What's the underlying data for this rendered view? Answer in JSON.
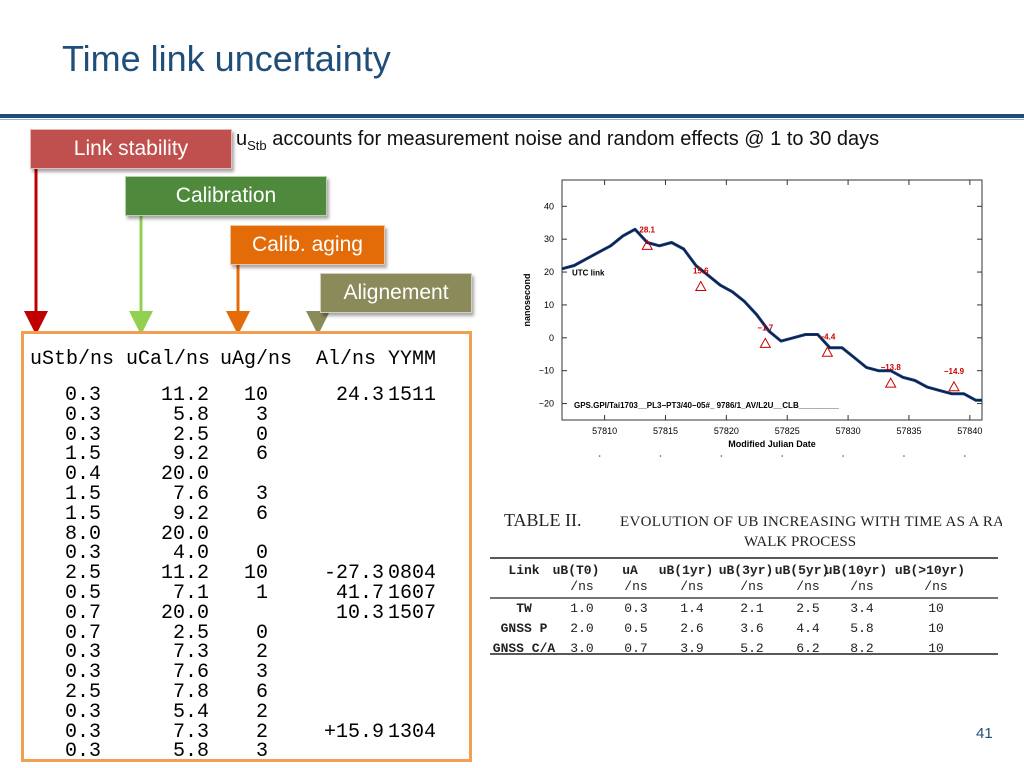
{
  "slide": {
    "title": "Time link uncertainty",
    "page_number": "41"
  },
  "tags": {
    "link_stability": "Link stability",
    "calibration": "Calibration",
    "calib_aging": "Calib. aging",
    "alignement": "Alignement"
  },
  "description": {
    "u": "u",
    "sub": "Stb",
    "rest": " accounts for measurement noise and random effects @ 1 to 30  days"
  },
  "colors": {
    "title": "#1f4e79",
    "link_stability": "#c0504d",
    "calibration": "#4f8a3c",
    "calib_aging": "#e36c09",
    "alignement": "#8a8a5a",
    "box_border": "#f0a050"
  },
  "data_table": {
    "headers": [
      "uStb/ns",
      "uCal/ns",
      "uAg/ns",
      "Al/ns",
      "YYMM"
    ],
    "rows": [
      [
        "0.3",
        "11.2",
        "10",
        "24.3",
        "1511"
      ],
      [
        "0.3",
        "5.8",
        "3",
        "",
        ""
      ],
      [
        "0.3",
        "2.5",
        "0",
        "",
        ""
      ],
      [
        "1.5",
        "9.2",
        "6",
        "",
        ""
      ],
      [
        "0.4",
        "20.0",
        "",
        "",
        ""
      ],
      [
        "1.5",
        "7.6",
        "3",
        "",
        ""
      ],
      [
        "1.5",
        "9.2",
        "6",
        "",
        ""
      ],
      [
        "8.0",
        "20.0",
        "",
        "",
        ""
      ],
      [
        "0.3",
        "4.0",
        "0",
        "",
        ""
      ],
      [
        "2.5",
        "11.2",
        "10",
        "-27.3",
        "0804"
      ],
      [
        "0.5",
        "7.1",
        "1",
        "41.7",
        "1607"
      ],
      [
        "0.7",
        "20.0",
        "",
        "10.3",
        "1507"
      ],
      [
        "0.7",
        "2.5",
        "0",
        "",
        ""
      ],
      [
        "0.3",
        "7.3",
        "2",
        "",
        ""
      ],
      [
        "0.3",
        "7.6",
        "3",
        "",
        ""
      ],
      [
        "2.5",
        "7.8",
        "6",
        "",
        ""
      ],
      [
        "0.3",
        "5.4",
        "2",
        "",
        ""
      ],
      [
        "0.3",
        "7.3",
        "2",
        "+15.9",
        "1304"
      ],
      [
        "0.3",
        "5.8",
        "3",
        "",
        ""
      ]
    ]
  },
  "chart_data": {
    "type": "line",
    "title": "",
    "xlabel": "Modified Julian Date",
    "ylabel": "nanosecond",
    "xlim": [
      57806.5,
      57841
    ],
    "ylim": [
      -25,
      48
    ],
    "xticks": [
      57810,
      57815,
      57820,
      57825,
      57830,
      57835,
      57840
    ],
    "yticks": [
      -20,
      -10,
      0,
      10,
      20,
      30,
      40
    ],
    "ytick_labels": [
      "−20",
      "−10",
      "0",
      "10",
      "20",
      "30",
      "40"
    ],
    "series_label": "UTC link",
    "footer": "GPS.GPI/Tai1703__PL3−PT3/40−05#_  9786/1_AV/L2U__CLB_________",
    "series": [
      {
        "name": "UTC link",
        "x": [
          57806.5,
          57807.5,
          57808.5,
          57809.5,
          57810.5,
          57811.5,
          57812.5,
          57813.5,
          57814.5,
          57815.5,
          57816.5,
          57817.5,
          57818.5,
          57819.5,
          57820.5,
          57821.5,
          57822.5,
          57823.5,
          57824.5,
          57825.5,
          57826.5,
          57827.5,
          57828.5,
          57829.5,
          57830.5,
          57831.5,
          57832.5,
          57833.5,
          57834.5,
          57835.5,
          57836.5,
          57837.5,
          57838.5,
          57839.5,
          57840.5,
          57841
        ],
        "y": [
          21,
          22,
          24,
          26,
          28,
          31,
          33,
          29,
          28,
          29,
          27,
          22,
          19,
          16,
          14,
          11,
          7,
          2,
          -1,
          0,
          1,
          1,
          -3,
          -3,
          -6,
          -9,
          -10,
          -10,
          -12,
          -13,
          -15,
          -16,
          -17,
          -17,
          -19,
          -19
        ]
      }
    ],
    "markers": [
      {
        "x": 57813.5,
        "y": 28.1,
        "label": "28.1"
      },
      {
        "x": 57817.9,
        "y": 15.6,
        "label": "15.6"
      },
      {
        "x": 57823.2,
        "y": -1.7,
        "label": "−1.7"
      },
      {
        "x": 57828.3,
        "y": -4.4,
        "label": "−4.4"
      },
      {
        "x": 57833.5,
        "y": -13.8,
        "label": "−13.8"
      },
      {
        "x": 57838.7,
        "y": -14.9,
        "label": "−14.9"
      }
    ]
  },
  "ref_table": {
    "label": "TABLE II.",
    "title_line1": "Evolution of uB increasing with time as a random",
    "title_line2": "walk process",
    "headers": [
      "Link",
      "uB(T0)",
      "uA",
      "uB(1yr)",
      "uB(3yr)",
      "uB(5yr)",
      "uB(10yr)",
      "uB(>10yr)"
    ],
    "units": [
      "",
      "/ns",
      "/ns",
      "/ns",
      "/ns",
      "/ns",
      "/ns",
      "/ns"
    ],
    "rows": [
      [
        "TW",
        "1.0",
        "0.3",
        "1.4",
        "2.1",
        "2.5",
        "3.4",
        "10"
      ],
      [
        "GNSS P",
        "2.0",
        "0.5",
        "2.6",
        "3.6",
        "4.4",
        "5.8",
        "10"
      ],
      [
        "GNSS C/A",
        "3.0",
        "0.7",
        "3.9",
        "5.2",
        "6.2",
        "8.2",
        "10"
      ]
    ]
  }
}
